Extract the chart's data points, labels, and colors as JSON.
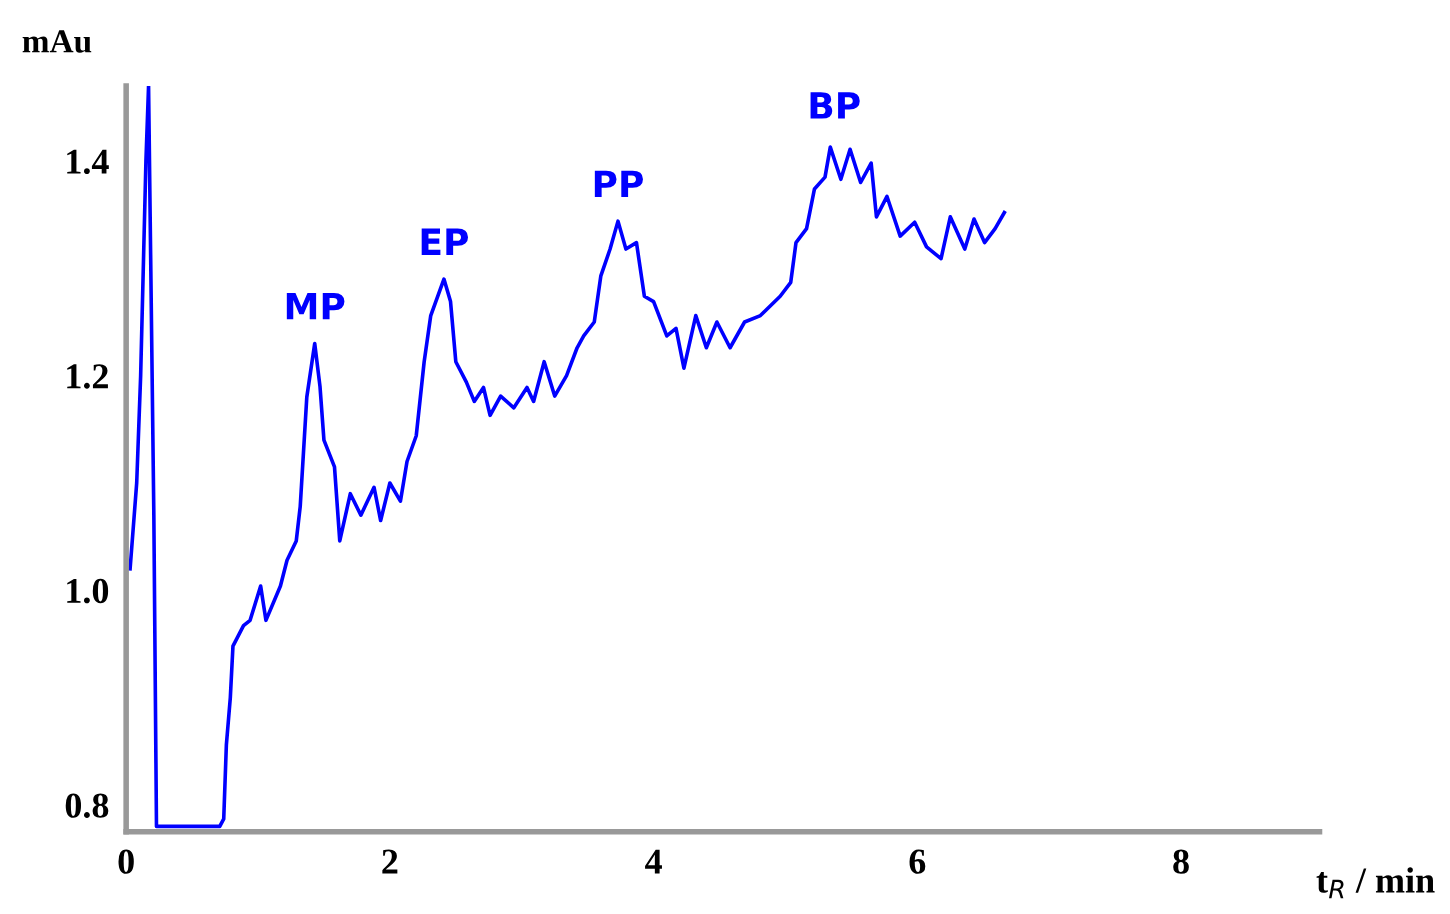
{
  "chart_data": {
    "type": "line",
    "xlabel": "t$_{R}$ / min",
    "ylabel": "mAu",
    "xlim": [
      0,
      9.05
    ],
    "ylim": [
      0.775,
      1.47
    ],
    "xticks": [
      0,
      2,
      4,
      6,
      8
    ],
    "yticks": [
      0.8,
      {
        "value": 1.0,
        "label": "1.0"
      },
      1.2,
      1.4
    ],
    "grid": false,
    "legend": false,
    "marker": "none",
    "line_style": "solid",
    "series": [
      {
        "color": "#0000ff",
        "x": [
          0.03,
          0.08,
          0.11,
          0.15,
          0.17,
          0.21,
          0.23,
          0.71,
          0.74,
          0.76,
          0.79,
          0.81,
          0.89,
          0.94,
          1.02,
          1.06,
          1.17,
          1.22,
          1.29,
          1.32,
          1.37,
          1.43,
          1.47,
          1.5,
          1.58,
          1.62,
          1.7,
          1.78,
          1.88,
          1.93,
          2.0,
          2.08,
          2.13,
          2.2,
          2.26,
          2.31,
          2.41,
          2.46,
          2.5,
          2.58,
          2.64,
          2.71,
          2.76,
          2.84,
          2.94,
          3.04,
          3.09,
          3.17,
          3.25,
          3.34,
          3.42,
          3.47,
          3.55,
          3.6,
          3.67,
          3.73,
          3.79,
          3.87,
          3.93,
          4.0,
          4.1,
          4.17,
          4.23,
          4.32,
          4.4,
          4.48,
          4.58,
          4.69,
          4.81,
          4.96,
          5.04,
          5.08,
          5.16,
          5.22,
          5.3,
          5.34,
          5.42,
          5.49,
          5.57,
          5.65,
          5.69,
          5.77,
          5.87,
          5.98,
          6.07,
          6.18,
          6.25,
          6.36,
          6.43,
          6.51,
          6.59,
          6.66
        ],
        "values": [
          1.02,
          1.1,
          1.2,
          1.4,
          1.47,
          1.07,
          0.78,
          0.78,
          0.787,
          0.856,
          0.9,
          0.948,
          0.967,
          0.972,
          1.004,
          0.972,
          1.004,
          1.028,
          1.046,
          1.078,
          1.18,
          1.23,
          1.19,
          1.14,
          1.115,
          1.046,
          1.09,
          1.07,
          1.096,
          1.065,
          1.1,
          1.083,
          1.12,
          1.144,
          1.213,
          1.256,
          1.29,
          1.269,
          1.213,
          1.194,
          1.176,
          1.189,
          1.163,
          1.181,
          1.17,
          1.189,
          1.176,
          1.213,
          1.181,
          1.2,
          1.226,
          1.237,
          1.25,
          1.293,
          1.318,
          1.344,
          1.318,
          1.324,
          1.274,
          1.269,
          1.237,
          1.244,
          1.207,
          1.256,
          1.226,
          1.25,
          1.226,
          1.25,
          1.256,
          1.274,
          1.287,
          1.324,
          1.337,
          1.374,
          1.385,
          1.413,
          1.383,
          1.411,
          1.38,
          1.398,
          1.348,
          1.367,
          1.33,
          1.343,
          1.32,
          1.309,
          1.348,
          1.318,
          1.346,
          1.324,
          1.337,
          1.352
        ]
      }
    ],
    "annotations": [
      {
        "text": "MP",
        "x": 1.43,
        "y": 1.23
      },
      {
        "text": "EP",
        "x": 2.41,
        "y": 1.29
      },
      {
        "text": "PP",
        "x": 3.73,
        "y": 1.344
      },
      {
        "text": "BP",
        "x": 5.37,
        "y": 1.417
      }
    ]
  }
}
